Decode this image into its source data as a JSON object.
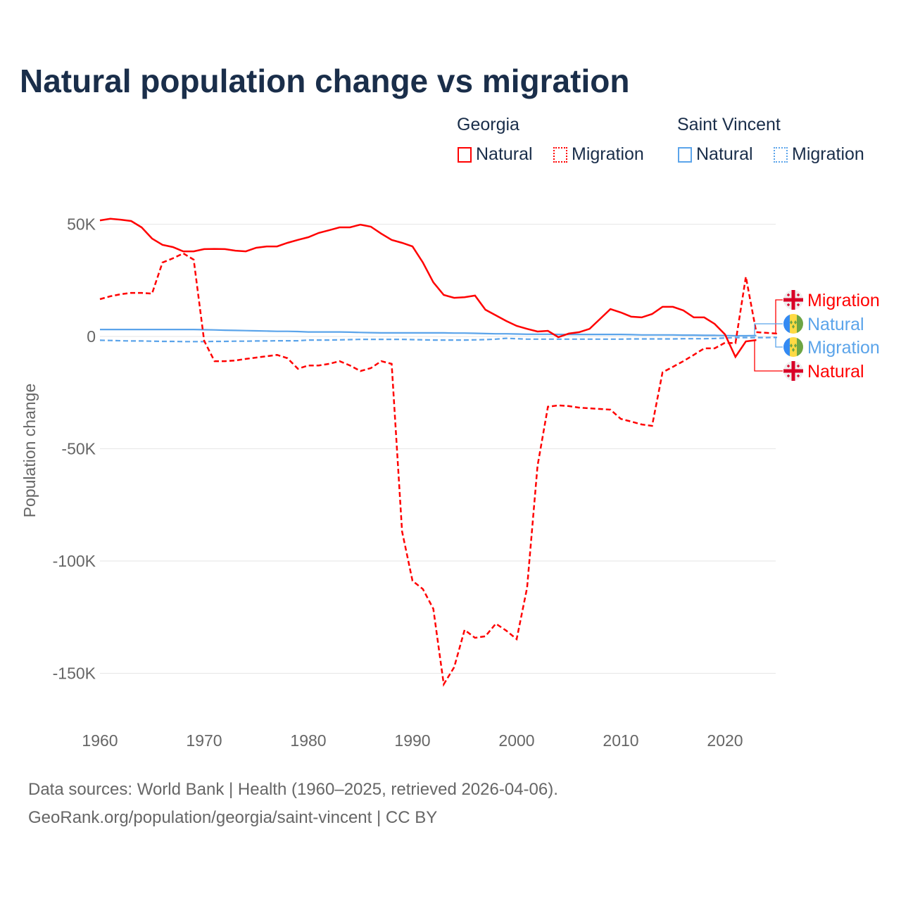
{
  "title": "Natural population change vs migration",
  "legend": {
    "groups": [
      {
        "name": "Georgia",
        "items": [
          "Natural",
          "Migration"
        ]
      },
      {
        "name": "Saint Vincent",
        "items": [
          "Natural",
          "Migration"
        ]
      }
    ]
  },
  "footer": {
    "line1": "Data sources: World Bank | Health (1960–2025, retrieved 2026-04-06).",
    "line2": "GeoRank.org/population/georgia/saint-vincent | CC BY"
  },
  "chart_data": {
    "type": "line",
    "title": "Natural population change vs migration",
    "xlabel": "",
    "ylabel": "Population change",
    "xlim": [
      1960,
      2025
    ],
    "ylim": [
      -165000,
      55000
    ],
    "xticks": [
      1960,
      1970,
      1980,
      1990,
      2000,
      2010,
      2020
    ],
    "xtick_labels": [
      "1960",
      "1970",
      "1980",
      "1990",
      "2000",
      "2010",
      "2020"
    ],
    "yticks": [
      50000,
      0,
      -50000,
      -100000,
      -150000
    ],
    "ytick_labels": [
      "50K",
      "0",
      "-50K",
      "-100K",
      "-150K"
    ],
    "grid": true,
    "colors": {
      "georgia": "#ff0000",
      "saint_vincent": "#5ba4ea"
    },
    "end_labels": [
      "Migration",
      "Natural",
      "Migration",
      "Natural"
    ],
    "series": [
      {
        "name": "Georgia Natural",
        "country": "georgia",
        "dash": false,
        "start": 1960,
        "values": [
          51700,
          52400,
          52000,
          51400,
          48600,
          43600,
          40800,
          39800,
          37900,
          37900,
          38900,
          39000,
          38900,
          38200,
          37900,
          39500,
          40100,
          40100,
          41700,
          43000,
          44200,
          46100,
          47300,
          48600,
          48600,
          49800,
          48900,
          45800,
          43000,
          41700,
          40100,
          32900,
          24100,
          18500,
          17200,
          17500,
          18200,
          11900,
          9400,
          6900,
          4700,
          3400,
          2200,
          2500,
          -300,
          1300,
          1900,
          3400,
          7800,
          12200,
          10700,
          8800,
          8500,
          10000,
          13200,
          13200,
          11600,
          8500,
          8500,
          5600,
          900,
          -9100,
          -2200,
          -1600
        ]
      },
      {
        "name": "Georgia Migration",
        "country": "georgia",
        "dash": true,
        "start": 1960,
        "values": [
          16600,
          17900,
          18800,
          19400,
          19400,
          19100,
          32900,
          34800,
          37000,
          34200,
          -1900,
          -11000,
          -11000,
          -10700,
          -10000,
          -9400,
          -8800,
          -8200,
          -9700,
          -14400,
          -12900,
          -12900,
          -12200,
          -11000,
          -12900,
          -15400,
          -14100,
          -11000,
          -12200,
          -86800,
          -108800,
          -112500,
          -121300,
          -154900,
          -147300,
          -130700,
          -134200,
          -133500,
          -127900,
          -131000,
          -134800,
          -111900,
          -57700,
          -31300,
          -30700,
          -31000,
          -31700,
          -32000,
          -32300,
          -32600,
          -36700,
          -37900,
          -39200,
          -39800,
          -16000,
          -13500,
          -11000,
          -8200,
          -5300,
          -5300,
          -2800,
          -3000,
          26600,
          1900,
          1600,
          1300
        ]
      },
      {
        "name": "Saint Vincent Natural",
        "country": "saint_vincent",
        "dash": false,
        "start": 1960,
        "values": [
          3100,
          3100,
          3100,
          3100,
          3100,
          3100,
          3100,
          3100,
          3100,
          3100,
          3000,
          2900,
          2800,
          2700,
          2600,
          2500,
          2400,
          2300,
          2300,
          2200,
          2000,
          2000,
          2000,
          2000,
          1900,
          1800,
          1700,
          1600,
          1600,
          1600,
          1600,
          1600,
          1600,
          1600,
          1500,
          1500,
          1400,
          1300,
          1200,
          1200,
          1100,
          1000,
          1000,
          1000,
          900,
          900,
          900,
          900,
          900,
          900,
          900,
          800,
          700,
          700,
          700,
          700,
          600,
          600,
          500,
          500,
          400,
          300,
          300,
          400
        ]
      },
      {
        "name": "Saint Vincent Migration",
        "country": "saint_vincent",
        "dash": true,
        "start": 1960,
        "values": [
          -1700,
          -1800,
          -1900,
          -2000,
          -2000,
          -2100,
          -2200,
          -2200,
          -2300,
          -2300,
          -2300,
          -2200,
          -2200,
          -2100,
          -2100,
          -2000,
          -2000,
          -1900,
          -1900,
          -1900,
          -1600,
          -1600,
          -1600,
          -1500,
          -1400,
          -1300,
          -1300,
          -1300,
          -1300,
          -1300,
          -1400,
          -1500,
          -1600,
          -1600,
          -1600,
          -1600,
          -1500,
          -1400,
          -1200,
          -800,
          -1000,
          -1200,
          -1200,
          -1200,
          -1200,
          -1200,
          -1200,
          -1200,
          -1200,
          -1200,
          -1200,
          -1100,
          -1100,
          -1100,
          -1100,
          -1100,
          -1000,
          -1000,
          -1000,
          -900,
          -700,
          -500,
          -500,
          -500,
          -500,
          -400
        ]
      }
    ]
  }
}
